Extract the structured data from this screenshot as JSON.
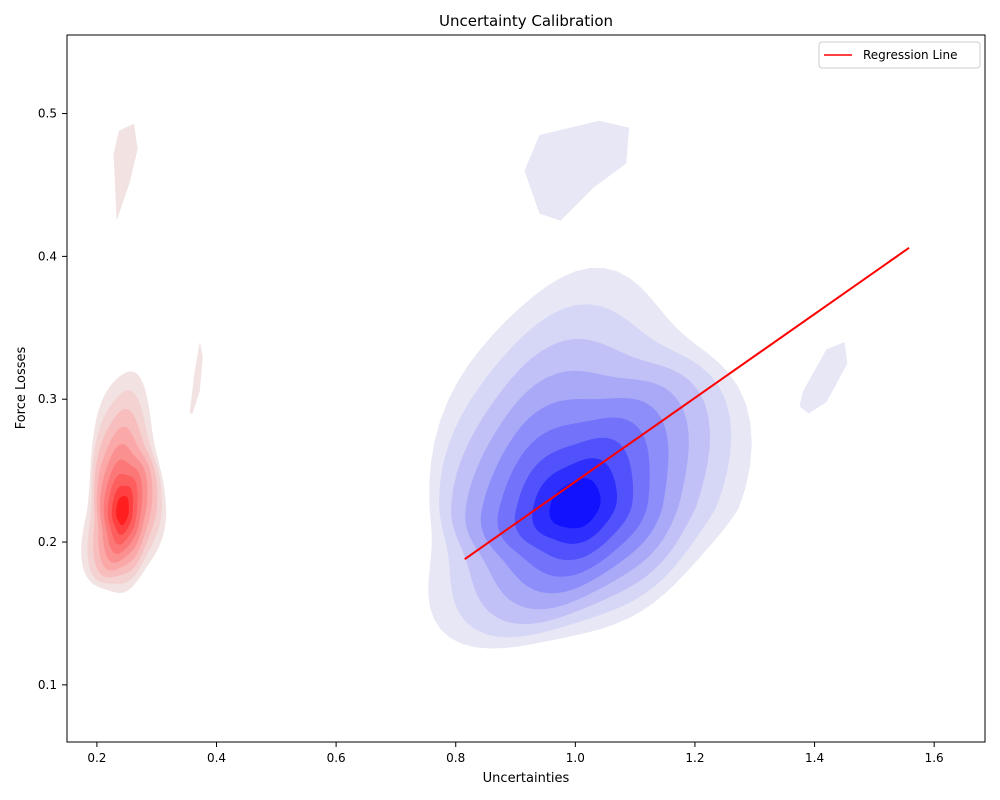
{
  "chart_data": {
    "type": "kde_contour",
    "title": "Uncertainty Calibration",
    "xlabel": "Uncertainties",
    "ylabel": "Force Losses",
    "xlim": [
      0.15,
      1.685
    ],
    "ylim": [
      0.06,
      0.555
    ],
    "x_ticks": [
      0.2,
      0.4,
      0.6,
      0.8,
      1.0,
      1.2,
      1.4,
      1.6
    ],
    "x_tick_labels": [
      "0.2",
      "0.4",
      "0.6",
      "0.8",
      "1.0",
      "1.2",
      "1.4",
      "1.6"
    ],
    "y_ticks": [
      0.1,
      0.2,
      0.3,
      0.4,
      0.5
    ],
    "y_tick_labels": [
      "0.1",
      "0.2",
      "0.3",
      "0.4",
      "0.5"
    ],
    "grid": false,
    "legend": {
      "position": "top-right",
      "entries": [
        {
          "label": "Regression Line",
          "color": "#ff0000"
        }
      ]
    },
    "density_series": [
      {
        "color": "#ff0000",
        "peak": {
          "x": 0.243,
          "y": 0.222
        },
        "outer_extent": {
          "x": [
            0.18,
            0.375
          ],
          "y": [
            0.11,
            0.495
          ]
        }
      },
      {
        "color": "#0000ff",
        "peak": {
          "x": 1.0,
          "y": 0.225
        },
        "outer_extent": {
          "x": [
            0.815,
            1.455
          ],
          "y": [
            0.12,
            0.495
          ]
        }
      }
    ],
    "regression_line": {
      "label": "Regression Line",
      "color": "#ff0000",
      "x": [
        0.815,
        1.558
      ],
      "y": [
        0.188,
        0.406
      ]
    }
  }
}
